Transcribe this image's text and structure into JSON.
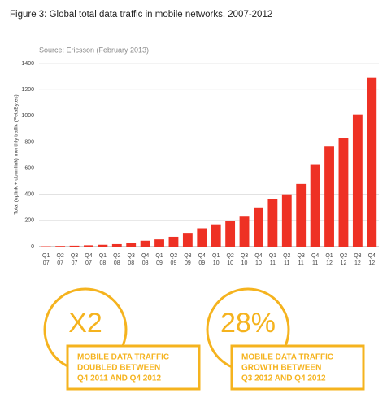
{
  "chart_data": {
    "type": "bar",
    "title": "Figure 3: Global total data traffic in mobile networks, 2007-2012",
    "subtitle": "Source: Ericsson (February 2013)",
    "y_label": "Total (uplink + downlink) monthly traffic (PetaBytes)",
    "categories": [
      [
        "Q1",
        "07"
      ],
      [
        "Q2",
        "07"
      ],
      [
        "Q3",
        "07"
      ],
      [
        "Q4",
        "07"
      ],
      [
        "Q1",
        "08"
      ],
      [
        "Q2",
        "08"
      ],
      [
        "Q3",
        "08"
      ],
      [
        "Q4",
        "08"
      ],
      [
        "Q1",
        "09"
      ],
      [
        "Q2",
        "09"
      ],
      [
        "Q3",
        "09"
      ],
      [
        "Q4",
        "09"
      ],
      [
        "Q1",
        "10"
      ],
      [
        "Q2",
        "10"
      ],
      [
        "Q3",
        "10"
      ],
      [
        "Q4",
        "10"
      ],
      [
        "Q1",
        "11"
      ],
      [
        "Q2",
        "11"
      ],
      [
        "Q3",
        "11"
      ],
      [
        "Q4",
        "11"
      ],
      [
        "Q1",
        "12"
      ],
      [
        "Q2",
        "12"
      ],
      [
        "Q3",
        "12"
      ],
      [
        "Q4",
        "12"
      ]
    ],
    "values": [
      3,
      5,
      7,
      10,
      14,
      19,
      27,
      45,
      55,
      75,
      105,
      140,
      170,
      195,
      235,
      300,
      365,
      400,
      480,
      625,
      770,
      830,
      1010,
      1290
    ],
    "color": "#ee3124",
    "ylim": [
      0,
      1400
    ],
    "yticks": [
      0,
      200,
      400,
      600,
      800,
      1000,
      1200,
      1400
    ],
    "grid": true
  },
  "callouts": [
    {
      "big": "X2",
      "lines": [
        "MOBILE DATA TRAFFIC",
        "DOUBLED BETWEEN",
        "Q4 2011 AND Q4 2012"
      ]
    },
    {
      "big": "28%",
      "lines": [
        "MOBILE DATA TRAFFIC",
        "GROWTH BETWEEN",
        "Q3 2012 AND Q4 2012"
      ]
    }
  ]
}
